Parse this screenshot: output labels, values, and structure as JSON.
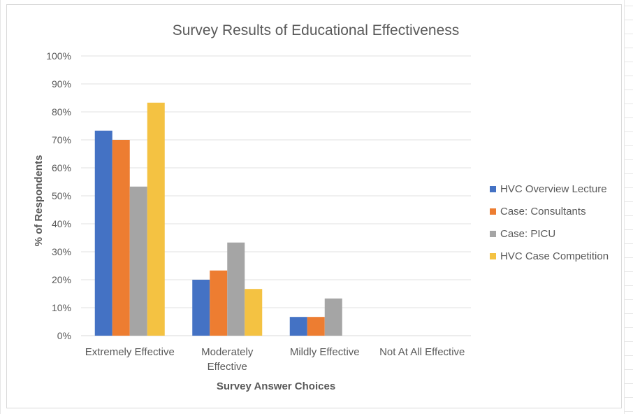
{
  "chart_data": {
    "type": "bar",
    "title": "Survey Results of Educational Effectiveness",
    "xlabel": "Survey Answer Choices",
    "ylabel": "% of Respondents",
    "categories": [
      [
        "Extremely Effective"
      ],
      [
        "Moderately",
        "Effective"
      ],
      [
        "Mildly Effective"
      ],
      [
        "Not At All Effective"
      ]
    ],
    "ylim": [
      0,
      100
    ],
    "yticks": [
      "0%",
      "10%",
      "20%",
      "30%",
      "40%",
      "50%",
      "60%",
      "70%",
      "80%",
      "90%",
      "100%"
    ],
    "grid": true,
    "legend_position": "right",
    "series": [
      {
        "name": "HVC Overview Lecture",
        "color": "#4472C4",
        "values": [
          73.3,
          20.0,
          6.7,
          0
        ]
      },
      {
        "name": "Case: Consultants",
        "color": "#ED7D31",
        "values": [
          70.0,
          23.3,
          6.7,
          0
        ]
      },
      {
        "name": "Case: PICU",
        "color": "#A5A5A5",
        "values": [
          53.3,
          33.3,
          13.3,
          0
        ]
      },
      {
        "name": "HVC Case Competition",
        "color": "#F4C242",
        "values": [
          83.3,
          16.7,
          0,
          0
        ]
      }
    ]
  }
}
